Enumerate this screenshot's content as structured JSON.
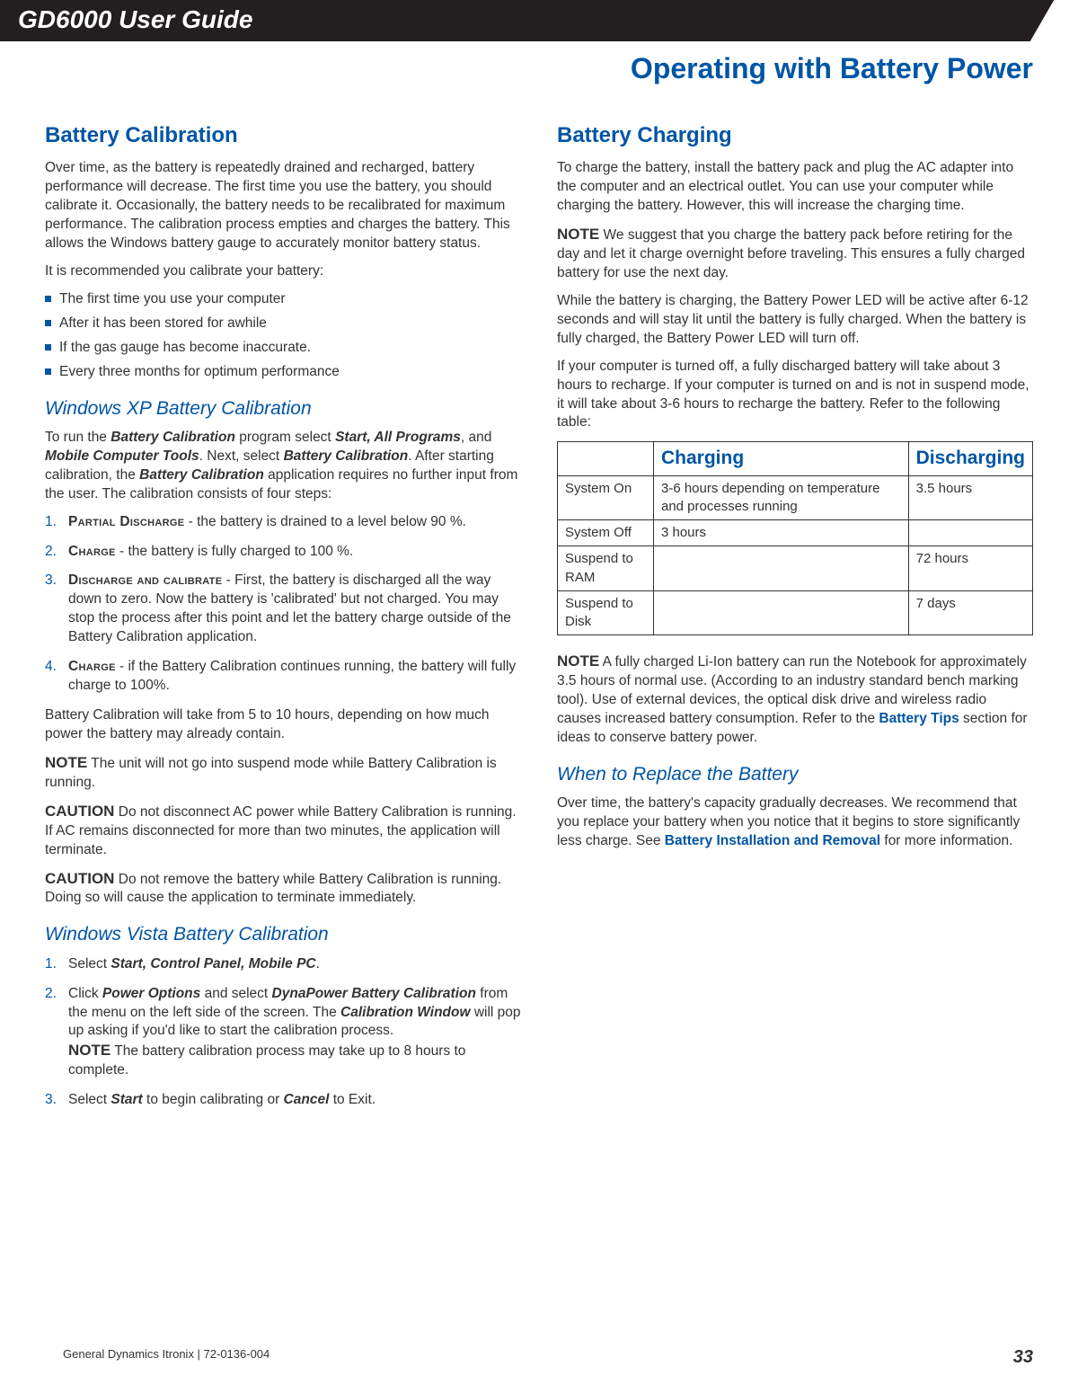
{
  "header": {
    "guide_title": "GD6000 User Guide",
    "chapter": "Operating  with Battery Power"
  },
  "left": {
    "h_calibration": "Battery Calibration",
    "p_intro": "Over time, as the battery is repeatedly drained and recharged, battery performance will decrease. The first time you use the battery, you should calibrate it. Occasionally, the battery needs to be recalibrated for maximum performance. The calibration process empties and charges the battery.  This allows the Windows battery gauge to accurately monitor battery status.",
    "p_recommend": "It is recommended you calibrate your battery:",
    "bullets": [
      "The first time you use your computer",
      "After it has been stored for awhile",
      "If the gas gauge has become inaccurate.",
      "Every three months for optimum performance"
    ],
    "h_xp": "Windows XP Battery Calibration",
    "xp_run_1": "To run the ",
    "xp_bc": "Battery Calibration",
    "xp_run_2": " program select  ",
    "xp_start": "Start, All Programs",
    "xp_run_3": ", and ",
    "xp_mct": "Mobile Computer Tools",
    "xp_run_4": ".  Next, select ",
    "xp_bc2": "Battery Calibration",
    "xp_run_5": ". After starting calibration, the ",
    "xp_bc3": "Battery Calibration",
    "xp_run_6": " application requires no further input from the user. The calibration consists of four steps:",
    "steps": [
      {
        "name": "Partial Discharge",
        "text": " - the battery is drained to a level below 90 %."
      },
      {
        "name": "Charge",
        "text": " -  the battery is fully charged to 100 %."
      },
      {
        "name": "Discharge and calibrate",
        "text": " - First, the battery is discharged all the way down to zero.  Now the battery is 'calibrated' but not charged. You may stop the process after this point and let the battery charge outside of the Battery Calibration application."
      },
      {
        "name": "Charge",
        "text": " - if the Battery Calibration continues running, the battery will fully charge to 100%."
      }
    ],
    "p_duration": "Battery Calibration will take from 5 to 10 hours, depending on how much power the battery may already contain.",
    "note1_label": "NOTE",
    "note1_text": "   The unit will not go into suspend mode while Battery Calibration is running.",
    "caution1_label": "CAUTION",
    "caution1_text": "   Do not disconnect AC power while Battery Calibration is running.  If AC remains disconnected for more than two minutes, the application will terminate.",
    "caution2_label": "CAUTION",
    "caution2_text": "   Do not remove the battery while Battery Calibration is running. Doing so will cause the application to terminate immediately.",
    "h_vista": "Windows Vista Battery Calibration",
    "vista_steps": {
      "s1_a": "Select ",
      "s1_b": "Start, Control Panel, Mobile PC",
      "s1_c": ".",
      "s2_a": "Click ",
      "s2_b": "Power Options",
      "s2_c": " and select ",
      "s2_d": "DynaPower Battery Calibration",
      "s2_e": " from the menu on the left side of the screen.  The ",
      "s2_f": "Calibration Window",
      "s2_g": " will pop up asking if you'd like to start the calibration process.",
      "s2_note_label": "NOTE",
      "s2_note_text": " The battery calibration process may take up to 8 hours to complete.",
      "s3_a": "Select ",
      "s3_b": "Start",
      "s3_c": " to begin calibrating or ",
      "s3_d": "Cancel",
      "s3_e": " to Exit."
    }
  },
  "right": {
    "h_charging": "Battery Charging",
    "p1": "To charge the battery, install the battery pack and plug the AC adapter into the computer and an electrical outlet. You can use your computer while charging the battery. However, this will increase the charging time.",
    "note1_label": "NOTE",
    "note1_text": "  We suggest that you charge the battery pack before retiring for the day and let it charge overnight before traveling. This ensures a fully charged battery for use the next day.",
    "p2": "While the battery is charging, the Battery Power LED  will be active after 6-12 seconds and will stay lit until the battery is fully charged. When the battery is fully charged, the Battery Power LED will turn off.",
    "p3": "If your computer is turned off, a fully discharged battery will take about 3 hours to recharge. If your computer is turned on and is not in suspend mode, it will take about 3-6 hours to recharge the battery. Refer to the following table:",
    "table": {
      "headers": [
        "",
        "Charging",
        "Discharging"
      ],
      "rows": [
        [
          "System On",
          "3-6 hours depending on temperature and processes running",
          "3.5 hours"
        ],
        [
          "System Off",
          "3 hours",
          ""
        ],
        [
          "Suspend to RAM",
          "",
          "72 hours"
        ],
        [
          "Suspend to Disk",
          "",
          "7 days"
        ]
      ]
    },
    "note2_label": "NOTE",
    "note2_a": "  A fully charged Li-Ion battery can run the Notebook for approximately 3.5 hours of normal use. (According to an industry standard bench marking tool).  Use of external devices, the optical disk drive and wireless radio causes increased battery consumption. Refer to the ",
    "note2_link": "Battery Tips",
    "note2_b": " section for ideas to conserve battery power.",
    "h_replace": "When to Replace the Battery",
    "replace_a": "Over time, the battery's capacity gradually decreases. We recommend that you replace your battery when you notice that it begins to store significantly less charge. See ",
    "replace_link": "Battery Installation and Removal",
    "replace_b": " for more information."
  },
  "footer": {
    "left": "General Dynamics Itronix | 72-0136-004",
    "page": "33"
  },
  "colors": {
    "brand_blue": "#0055a5",
    "header_bg": "#231f20",
    "text": "#333333"
  }
}
